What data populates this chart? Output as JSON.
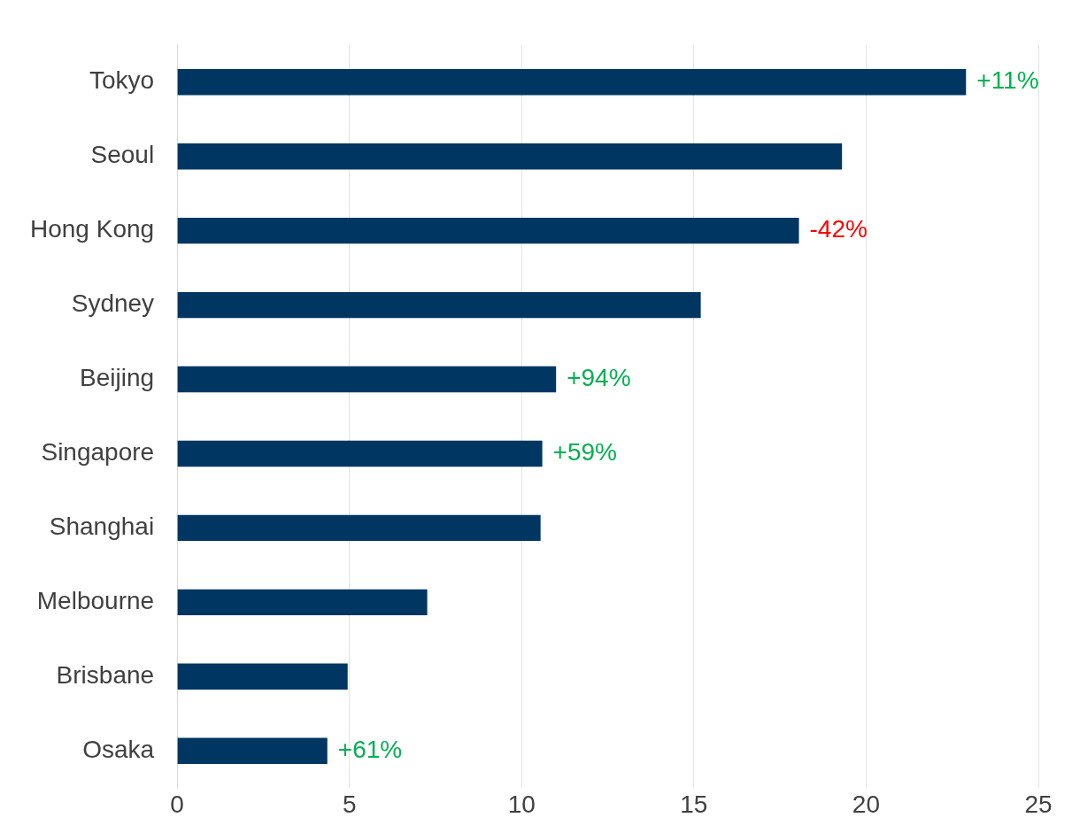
{
  "chart_data": {
    "type": "bar",
    "orientation": "horizontal",
    "categories": [
      "Tokyo",
      "Seoul",
      "Hong Kong",
      "Sydney",
      "Beijing",
      "Singapore",
      "Shanghai",
      "Melbourne",
      "Brisbane",
      "Osaka"
    ],
    "values": [
      22.9,
      19.3,
      18.05,
      15.2,
      11.0,
      10.6,
      10.55,
      7.26,
      4.95,
      4.36
    ],
    "annotations": [
      {
        "text": "+11%",
        "x": 22.9,
        "y": "Tokyo"
      },
      {
        "text": "-42%",
        "x": 18.05,
        "y": "Hong Kong"
      },
      {
        "text": "+94%",
        "x": 11.0,
        "y": "Beijing"
      },
      {
        "text": "+59%",
        "x": 10.6,
        "y": "Singapore"
      },
      {
        "text": "+61%",
        "x": 4.36,
        "y": "Osaka"
      }
    ],
    "color": "#003662",
    "xlim": [
      0,
      25
    ],
    "xticks": [
      0,
      5,
      10,
      15,
      20,
      25
    ],
    "grid": "x",
    "legend": false
  }
}
